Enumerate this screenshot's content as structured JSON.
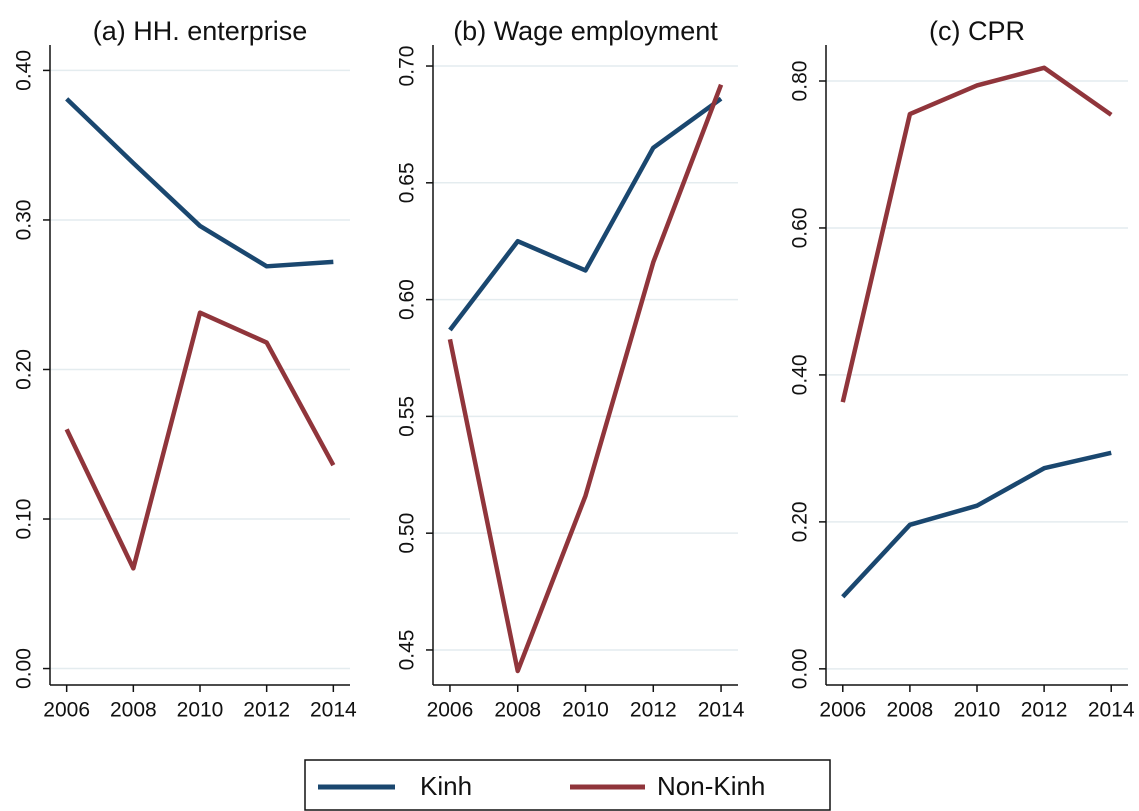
{
  "chart_data": [
    {
      "type": "line",
      "title": "(a) HH. enterprise",
      "x": [
        2006,
        2008,
        2010,
        2012,
        2014
      ],
      "series": [
        {
          "name": "Kinh",
          "color": "#1a476f",
          "values": [
            0.381,
            0.338,
            0.296,
            0.269,
            0.272
          ]
        },
        {
          "name": "Non-Kinh",
          "color": "#90353b",
          "values": [
            0.16,
            0.067,
            0.238,
            0.218,
            0.136
          ]
        }
      ],
      "xlim": [
        2005.5,
        2014.5
      ],
      "xticks": [
        2006,
        2008,
        2010,
        2012,
        2014
      ],
      "ylim": [
        -0.011,
        0.417
      ],
      "yticks": [
        {
          "value": 0,
          "label": "0.00"
        },
        {
          "value": 0.1,
          "label": "0.10"
        },
        {
          "value": 0.2,
          "label": "0.20"
        },
        {
          "value": 0.3,
          "label": "0.30"
        },
        {
          "value": 0.4,
          "label": "0.40"
        }
      ],
      "grid": true
    },
    {
      "type": "line",
      "title": "(b) Wage employment",
      "x": [
        2006,
        2008,
        2010,
        2012,
        2014
      ],
      "series": [
        {
          "color": "#1a476f",
          "values": [
            0.587,
            0.625,
            0.6125,
            0.665,
            0.686
          ]
        },
        {
          "color": "#90353b",
          "values": [
            0.583,
            0.441,
            0.516,
            0.616,
            0.692
          ]
        }
      ],
      "xlim": [
        2005.5,
        2014.5
      ],
      "xticks": [
        2006,
        2008,
        2010,
        2012,
        2014
      ],
      "ylim": [
        0.435,
        0.709
      ],
      "yticks": [
        {
          "value": 0.45,
          "label": "0.45"
        },
        {
          "value": 0.5,
          "label": "0.50"
        },
        {
          "value": 0.55,
          "label": "0.55"
        },
        {
          "value": 0.6,
          "label": "0.60"
        },
        {
          "value": 0.65,
          "label": "0.65"
        },
        {
          "value": 0.7,
          "label": "0.70"
        }
      ],
      "grid": true
    },
    {
      "type": "line",
      "title": "(c) CPR",
      "x": [
        2006,
        2008,
        2010,
        2012,
        2014
      ],
      "series": [
        {
          "color": "#1a476f",
          "values": [
            0.098,
            0.196,
            0.222,
            0.273,
            0.294
          ]
        },
        {
          "color": "#90353b",
          "values": [
            0.363,
            0.755,
            0.794,
            0.818,
            0.754
          ]
        }
      ],
      "xlim": [
        2005.5,
        2014.5
      ],
      "xticks": [
        2006,
        2008,
        2010,
        2012,
        2014
      ],
      "ylim": [
        -0.022,
        0.849
      ],
      "yticks": [
        {
          "value": 0,
          "label": "0.00"
        },
        {
          "value": 0.2,
          "label": "0.20"
        },
        {
          "value": 0.4,
          "label": "0.40"
        },
        {
          "value": 0.6,
          "label": "0.60"
        },
        {
          "value": 0.8,
          "label": "0.80"
        }
      ],
      "grid": true
    }
  ]
}
